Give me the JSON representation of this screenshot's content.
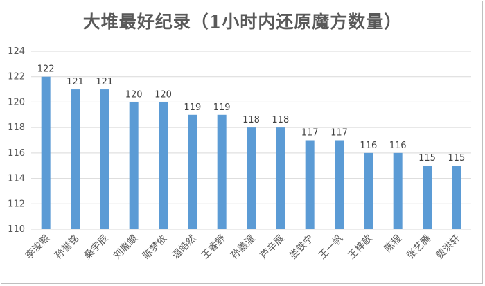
{
  "chart_data": {
    "type": "bar",
    "title": "大堆最好纪录（1小时内还原魔方数量）",
    "xlabel": "",
    "ylabel": "",
    "categories": [
      "李浚熙",
      "孙誉铭",
      "桑宇辰",
      "刘胤頔",
      "陈梦依",
      "温皓然",
      "王睿野",
      "孙墨潼",
      "芦辛展",
      "娄铁宁",
      "王一帆",
      "王梓歆",
      "陈程",
      "张艺腾",
      "费洪轩"
    ],
    "values": [
      122,
      121,
      121,
      120,
      120,
      119,
      119,
      118,
      118,
      117,
      117,
      116,
      116,
      115,
      115
    ],
    "ylim": [
      110,
      124
    ],
    "yticks": [
      110,
      112,
      114,
      116,
      118,
      120,
      122,
      124
    ],
    "grid": true,
    "legend": "none",
    "data_labels": true,
    "bar_color": "#5b9bd5"
  }
}
